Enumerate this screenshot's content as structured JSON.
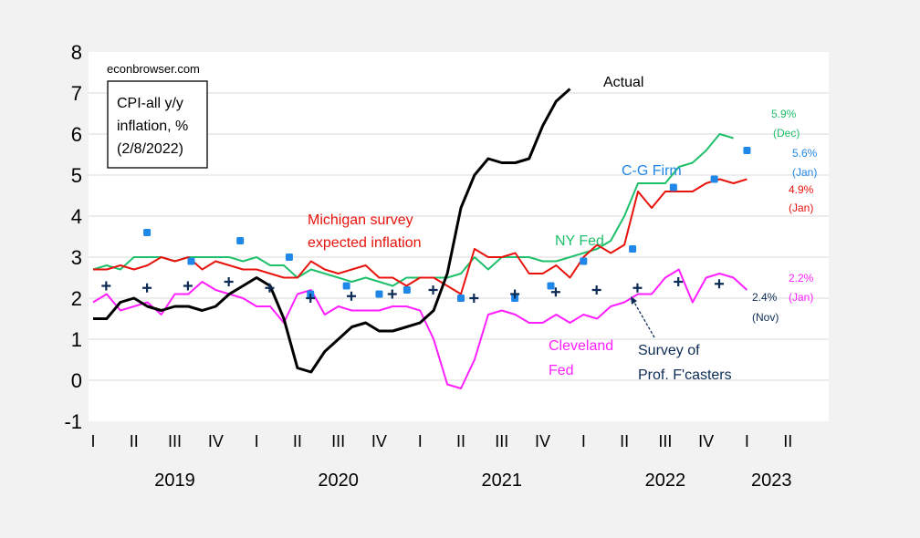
{
  "chart_data": {
    "type": "line",
    "source_label": "econbrowser.com",
    "legend_box_lines": [
      "CPI-all y/y",
      "inflation, %",
      "(2/8/2022)"
    ],
    "ylim": [
      -1,
      8
    ],
    "yticks": [
      -1,
      0,
      1,
      2,
      3,
      4,
      5,
      6,
      7,
      8
    ],
    "xlim": [
      2019.0,
      2023.5
    ],
    "quarter_ticks": [
      {
        "x": 2019.0,
        "label": "I"
      },
      {
        "x": 2019.25,
        "label": "II"
      },
      {
        "x": 2019.5,
        "label": "III"
      },
      {
        "x": 2019.75,
        "label": "IV"
      },
      {
        "x": 2020.0,
        "label": "I"
      },
      {
        "x": 2020.25,
        "label": "II"
      },
      {
        "x": 2020.5,
        "label": "III"
      },
      {
        "x": 2020.75,
        "label": "IV"
      },
      {
        "x": 2021.0,
        "label": "I"
      },
      {
        "x": 2021.25,
        "label": "II"
      },
      {
        "x": 2021.5,
        "label": "III"
      },
      {
        "x": 2021.75,
        "label": "IV"
      },
      {
        "x": 2022.0,
        "label": "I"
      },
      {
        "x": 2022.25,
        "label": "II"
      },
      {
        "x": 2022.5,
        "label": "III"
      },
      {
        "x": 2022.75,
        "label": "IV"
      },
      {
        "x": 2023.0,
        "label": "I"
      },
      {
        "x": 2023.25,
        "label": "II"
      }
    ],
    "years": [
      {
        "x": 2019.5,
        "label": "2019"
      },
      {
        "x": 2020.5,
        "label": "2020"
      },
      {
        "x": 2021.5,
        "label": "2021"
      },
      {
        "x": 2022.5,
        "label": "2022"
      },
      {
        "x": 2023.15,
        "label": "2023"
      }
    ],
    "colors": {
      "actual": "#000000",
      "michigan": "#e8120c",
      "nyfed": "#1fc06b",
      "cleveland": "#ff1fff",
      "cgfirm": "#1f87e8",
      "spf": "#0d2c55",
      "background": "#ffffff",
      "page": "#f2f2f2"
    },
    "series": [
      {
        "name": "Actual",
        "key": "actual",
        "kind": "line",
        "x": [
          2019.0,
          2019.083,
          2019.167,
          2019.25,
          2019.333,
          2019.417,
          2019.5,
          2019.583,
          2019.667,
          2019.75,
          2019.833,
          2019.917,
          2020.0,
          2020.083,
          2020.167,
          2020.25,
          2020.333,
          2020.417,
          2020.5,
          2020.583,
          2020.667,
          2020.75,
          2020.833,
          2020.917,
          2021.0,
          2021.083,
          2021.167,
          2021.25,
          2021.333,
          2021.417,
          2021.5,
          2021.583,
          2021.667,
          2021.75,
          2021.833,
          2021.917
        ],
        "y": [
          1.5,
          1.5,
          1.9,
          2.0,
          1.8,
          1.7,
          1.8,
          1.8,
          1.7,
          1.8,
          2.1,
          2.3,
          2.5,
          2.3,
          1.5,
          0.3,
          0.2,
          0.7,
          1.0,
          1.3,
          1.4,
          1.2,
          1.2,
          1.3,
          1.4,
          1.7,
          2.6,
          4.2,
          5.0,
          5.4,
          5.3,
          5.3,
          5.4,
          6.2,
          6.8,
          7.1
        ]
      },
      {
        "name": "Michigan survey expected inflation",
        "key": "michigan",
        "kind": "line",
        "x": [
          2019.0,
          2019.083,
          2019.167,
          2019.25,
          2019.333,
          2019.417,
          2019.5,
          2019.583,
          2019.667,
          2019.75,
          2019.833,
          2019.917,
          2020.0,
          2020.083,
          2020.167,
          2020.25,
          2020.333,
          2020.417,
          2020.5,
          2020.583,
          2020.667,
          2020.75,
          2020.833,
          2020.917,
          2021.0,
          2021.083,
          2021.167,
          2021.25,
          2021.333,
          2021.417,
          2021.5,
          2021.583,
          2021.667,
          2021.75,
          2021.833,
          2021.917,
          2022.0,
          2022.083,
          2022.167,
          2022.25,
          2022.333,
          2022.417,
          2022.5,
          2022.583,
          2022.667,
          2022.75,
          2022.833,
          2022.917,
          2023.0
        ],
        "y": [
          2.7,
          2.7,
          2.8,
          2.7,
          2.8,
          3.0,
          2.9,
          3.0,
          2.7,
          2.9,
          2.8,
          2.7,
          2.7,
          2.6,
          2.5,
          2.5,
          2.9,
          2.7,
          2.6,
          2.7,
          2.8,
          2.5,
          2.5,
          2.3,
          2.5,
          2.5,
          2.3,
          2.1,
          3.2,
          3.0,
          3.0,
          3.1,
          2.6,
          2.6,
          2.8,
          2.5,
          3.0,
          3.3,
          3.1,
          3.3,
          4.6,
          4.2,
          4.6,
          4.6,
          4.6,
          4.8,
          4.9,
          4.8,
          4.9
        ]
      },
      {
        "name": "NY Fed",
        "key": "nyfed",
        "kind": "line",
        "x": [
          2019.0,
          2019.083,
          2019.167,
          2019.25,
          2019.333,
          2019.417,
          2019.5,
          2019.583,
          2019.667,
          2019.75,
          2019.833,
          2019.917,
          2020.0,
          2020.083,
          2020.167,
          2020.25,
          2020.333,
          2020.417,
          2020.5,
          2020.583,
          2020.667,
          2020.75,
          2020.833,
          2020.917,
          2021.0,
          2021.083,
          2021.167,
          2021.25,
          2021.333,
          2021.417,
          2021.5,
          2021.583,
          2021.667,
          2021.75,
          2021.833,
          2021.917,
          2022.0,
          2022.083,
          2022.167,
          2022.25,
          2022.333,
          2022.417,
          2022.5,
          2022.583,
          2022.667,
          2022.75,
          2022.833,
          2022.917
        ],
        "y": [
          2.7,
          2.8,
          2.7,
          3.0,
          3.0,
          3.0,
          2.9,
          3.0,
          3.0,
          3.0,
          3.0,
          2.9,
          3.0,
          2.8,
          2.8,
          2.5,
          2.7,
          2.6,
          2.5,
          2.4,
          2.5,
          2.4,
          2.3,
          2.5,
          2.5,
          2.5,
          2.5,
          2.6,
          3.0,
          2.7,
          3.0,
          3.0,
          3.0,
          2.9,
          2.9,
          3.0,
          3.1,
          3.2,
          3.4,
          4.0,
          4.8,
          4.8,
          4.8,
          5.2,
          5.3,
          5.6,
          6.0,
          5.9
        ]
      },
      {
        "name": "Cleveland Fed",
        "key": "cleveland",
        "kind": "line",
        "x": [
          2019.0,
          2019.083,
          2019.167,
          2019.25,
          2019.333,
          2019.417,
          2019.5,
          2019.583,
          2019.667,
          2019.75,
          2019.833,
          2019.917,
          2020.0,
          2020.083,
          2020.167,
          2020.25,
          2020.333,
          2020.417,
          2020.5,
          2020.583,
          2020.667,
          2020.75,
          2020.833,
          2020.917,
          2021.0,
          2021.083,
          2021.167,
          2021.25,
          2021.333,
          2021.417,
          2021.5,
          2021.583,
          2021.667,
          2021.75,
          2021.833,
          2021.917,
          2022.0,
          2022.083,
          2022.167,
          2022.25,
          2022.333,
          2022.417,
          2022.5,
          2022.583,
          2022.667,
          2022.75,
          2022.833,
          2022.917,
          2023.0
        ],
        "y": [
          1.9,
          2.1,
          1.7,
          1.8,
          1.9,
          1.6,
          2.1,
          2.1,
          2.4,
          2.2,
          2.1,
          2.0,
          1.8,
          1.8,
          1.4,
          2.1,
          2.2,
          1.6,
          1.8,
          1.7,
          1.7,
          1.7,
          1.8,
          1.8,
          1.7,
          1.0,
          -0.1,
          -0.2,
          0.5,
          1.6,
          1.7,
          1.6,
          1.4,
          1.4,
          1.6,
          1.4,
          1.6,
          1.5,
          1.8,
          1.9,
          2.1,
          2.1,
          2.5,
          2.7,
          1.9,
          2.5,
          2.6,
          2.5,
          2.2
        ]
      },
      {
        "name": "C-G Firm",
        "key": "cgfirm",
        "kind": "markers",
        "x": [
          2019.33,
          2019.6,
          2019.9,
          2020.2,
          2020.33,
          2020.55,
          2020.75,
          2020.92,
          2021.25,
          2021.58,
          2021.8,
          2022.0,
          2022.3,
          2022.55,
          2022.8,
          2023.0
        ],
        "y": [
          3.6,
          2.9,
          3.4,
          3.0,
          2.1,
          2.3,
          2.1,
          2.2,
          2.0,
          2.0,
          2.3,
          2.9,
          3.2,
          4.7,
          4.9,
          5.6
        ]
      },
      {
        "name": "Survey of Prof. F'casters",
        "key": "spf",
        "kind": "plus",
        "x": [
          2019.08,
          2019.33,
          2019.58,
          2019.83,
          2020.08,
          2020.33,
          2020.58,
          2020.83,
          2021.08,
          2021.33,
          2021.58,
          2021.83,
          2022.08,
          2022.33,
          2022.58,
          2022.83
        ],
        "y": [
          2.3,
          2.25,
          2.3,
          2.4,
          2.25,
          2.0,
          2.05,
          2.1,
          2.2,
          2.0,
          2.1,
          2.15,
          2.2,
          2.25,
          2.4,
          2.35
        ]
      }
    ],
    "labels": {
      "actual": "Actual",
      "michigan": [
        "Michigan survey",
        "expected inflation"
      ],
      "nyfed": "NY Fed",
      "cgfirm": "C-G Firm",
      "cleveland": [
        "Cleveland",
        "Fed"
      ],
      "spf": [
        "Survey of",
        "Prof. F'casters"
      ],
      "nyfed_end": [
        "5.9%",
        "(Dec)"
      ],
      "cgfirm_end": [
        "5.6%",
        "(Jan)"
      ],
      "michigan_end": [
        "4.9%",
        "(Jan)"
      ],
      "cleveland_end": [
        "2.2%",
        "(Jan)"
      ],
      "spf_end": [
        "2.4%",
        "(Nov)"
      ]
    }
  }
}
